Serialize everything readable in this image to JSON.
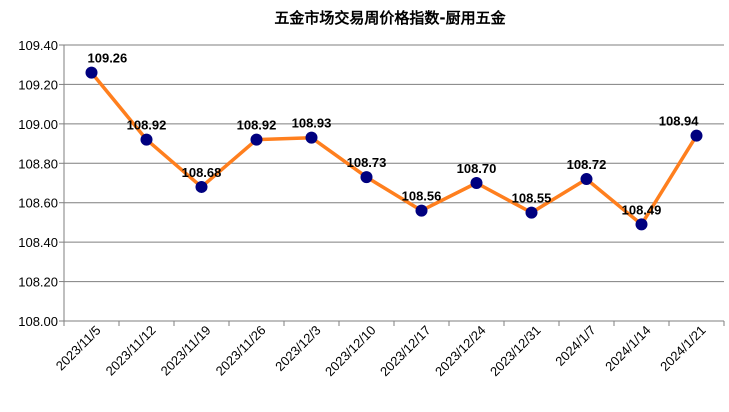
{
  "chart_data": {
    "type": "line",
    "title": "五金市场交易周价格指数-厨用五金",
    "xlabel": "",
    "ylabel": "",
    "categories": [
      "2023/11/5",
      "2023/11/12",
      "2023/11/19",
      "2023/11/26",
      "2023/12/3",
      "2023/12/10",
      "2023/12/17",
      "2023/12/24",
      "2023/12/31",
      "2024/1/7",
      "2024/1/14",
      "2024/1/21"
    ],
    "series": [
      {
        "values": [
          109.26,
          108.92,
          108.68,
          108.92,
          108.93,
          108.73,
          108.56,
          108.7,
          108.55,
          108.72,
          108.49,
          108.94
        ]
      }
    ],
    "value_labels": [
      "109.26",
      "108.92",
      "108.68",
      "108.92",
      "108.93",
      "108.73",
      "108.56",
      "108.70",
      "108.55",
      "108.72",
      "108.49",
      "108.94"
    ],
    "ylim": [
      108.0,
      109.4
    ],
    "yticks": [
      "108.00",
      "108.20",
      "108.40",
      "108.60",
      "108.80",
      "109.00",
      "109.20",
      "109.40"
    ],
    "grid": true,
    "legend": "none",
    "colors": {
      "line": "#FF7F1E",
      "marker": "#00007F",
      "grid": "#7F7F7F",
      "axis": "#7F7F7F"
    }
  }
}
